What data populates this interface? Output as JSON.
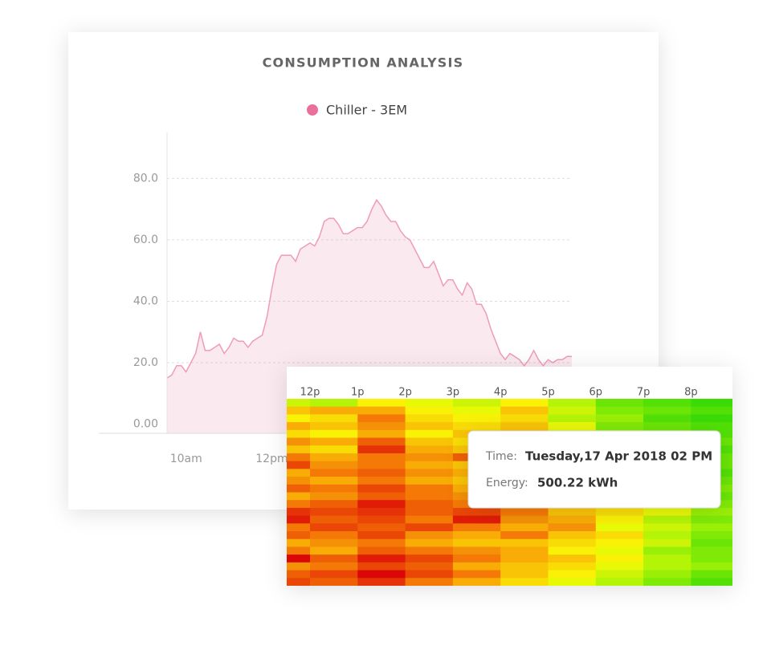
{
  "chart_data": [
    {
      "type": "area",
      "title": "CONSUMPTION ANALYSIS",
      "categories": [
        null,
        null,
        null,
        null,
        "10am",
        null,
        null,
        null,
        null,
        null,
        null,
        null,
        null,
        null,
        null,
        null,
        null,
        null,
        null,
        null,
        null,
        null,
        "12pm",
        null,
        null,
        null,
        null,
        null,
        null,
        null,
        null,
        null,
        null,
        null,
        null,
        null,
        null,
        null,
        null,
        null,
        null,
        null,
        null,
        null,
        null,
        null,
        null,
        null,
        null,
        null,
        null,
        null,
        null,
        null,
        null,
        null,
        null,
        null,
        null,
        null,
        null,
        null,
        null,
        null,
        null,
        null,
        null,
        null,
        null,
        null,
        null,
        null,
        null,
        null,
        null,
        null,
        null,
        null,
        null,
        null,
        null,
        null,
        null,
        null,
        null,
        null
      ],
      "series": [
        {
          "name": "Chiller - 3EM",
          "color": "#ef9bbb",
          "values": [
            15,
            16,
            19,
            19,
            17,
            20,
            23,
            30,
            24,
            24,
            25,
            26,
            23,
            25,
            28,
            27,
            27,
            25,
            27,
            28,
            29,
            35,
            44,
            52,
            55,
            55,
            55,
            53,
            57,
            58,
            59,
            58,
            61,
            66,
            67,
            67,
            65,
            62,
            62,
            63,
            64,
            64,
            66,
            70,
            73,
            71,
            68,
            66,
            66,
            63,
            61,
            60,
            57,
            54,
            51,
            51,
            53,
            49,
            45,
            47,
            47,
            44,
            42,
            46,
            44,
            39,
            39,
            36,
            31,
            27,
            23,
            21,
            23,
            22,
            21,
            19,
            21,
            24,
            21,
            19,
            21,
            20,
            21,
            21,
            22,
            22
          ]
        }
      ],
      "ylim": [
        -3,
        95
      ],
      "yticks": [
        {
          "value": 0,
          "label": "0.00"
        },
        {
          "value": 20,
          "label": "20.0"
        },
        {
          "value": 40,
          "label": "40.0"
        },
        {
          "value": 60,
          "label": "60.0"
        },
        {
          "value": 80,
          "label": "80.0"
        }
      ],
      "grid": true
    },
    {
      "type": "heatmap",
      "x": [
        null,
        "12p",
        "1p",
        "2p",
        "3p",
        "4p",
        "5p",
        "6p",
        "7p",
        "8p"
      ],
      "values": [
        [
          35,
          30,
          45,
          40,
          35,
          45,
          30,
          15,
          10,
          5
        ],
        [
          55,
          60,
          60,
          45,
          40,
          55,
          35,
          20,
          15,
          10
        ],
        [
          45,
          50,
          70,
          50,
          45,
          50,
          30,
          25,
          10,
          5
        ],
        [
          60,
          55,
          65,
          55,
          50,
          55,
          40,
          20,
          15,
          10
        ],
        [
          50,
          45,
          60,
          45,
          55,
          60,
          35,
          25,
          20,
          10
        ],
        [
          65,
          60,
          75,
          55,
          50,
          45,
          30,
          30,
          15,
          15
        ],
        [
          55,
          50,
          85,
          60,
          55,
          50,
          40,
          20,
          10,
          10
        ],
        [
          70,
          60,
          70,
          65,
          75,
          55,
          45,
          35,
          25,
          15
        ],
        [
          80,
          65,
          70,
          60,
          55,
          60,
          40,
          30,
          20,
          15
        ],
        [
          60,
          70,
          75,
          65,
          60,
          70,
          50,
          35,
          25,
          10
        ],
        [
          65,
          60,
          70,
          60,
          55,
          65,
          45,
          30,
          20,
          15
        ],
        [
          75,
          70,
          80,
          70,
          60,
          90,
          55,
          45,
          30,
          20
        ],
        [
          60,
          65,
          75,
          70,
          65,
          85,
          60,
          40,
          30,
          15
        ],
        [
          70,
          75,
          90,
          75,
          70,
          65,
          60,
          45,
          35,
          20
        ],
        [
          85,
          80,
          85,
          75,
          80,
          70,
          55,
          50,
          40,
          25
        ],
        [
          90,
          75,
          80,
          70,
          90,
          65,
          60,
          45,
          30,
          20
        ],
        [
          70,
          80,
          75,
          80,
          70,
          60,
          65,
          40,
          35,
          25
        ],
        [
          75,
          70,
          80,
          65,
          60,
          70,
          55,
          50,
          30,
          20
        ],
        [
          60,
          65,
          70,
          60,
          55,
          55,
          50,
          45,
          35,
          15
        ],
        [
          70,
          60,
          75,
          70,
          65,
          60,
          45,
          40,
          25,
          20
        ],
        [
          95,
          75,
          90,
          80,
          70,
          60,
          55,
          45,
          30,
          20
        ],
        [
          65,
          70,
          80,
          75,
          60,
          55,
          50,
          40,
          30,
          25
        ],
        [
          75,
          80,
          95,
          80,
          70,
          55,
          45,
          35,
          25,
          15
        ],
        [
          80,
          75,
          85,
          70,
          60,
          50,
          40,
          30,
          20,
          10
        ]
      ],
      "tooltip": {
        "time_label": "Time:",
        "time": "Tuesday,17 Apr 2018 02 PM",
        "energy_label": "Energy:",
        "energy": "500.22 kWh"
      }
    }
  ]
}
